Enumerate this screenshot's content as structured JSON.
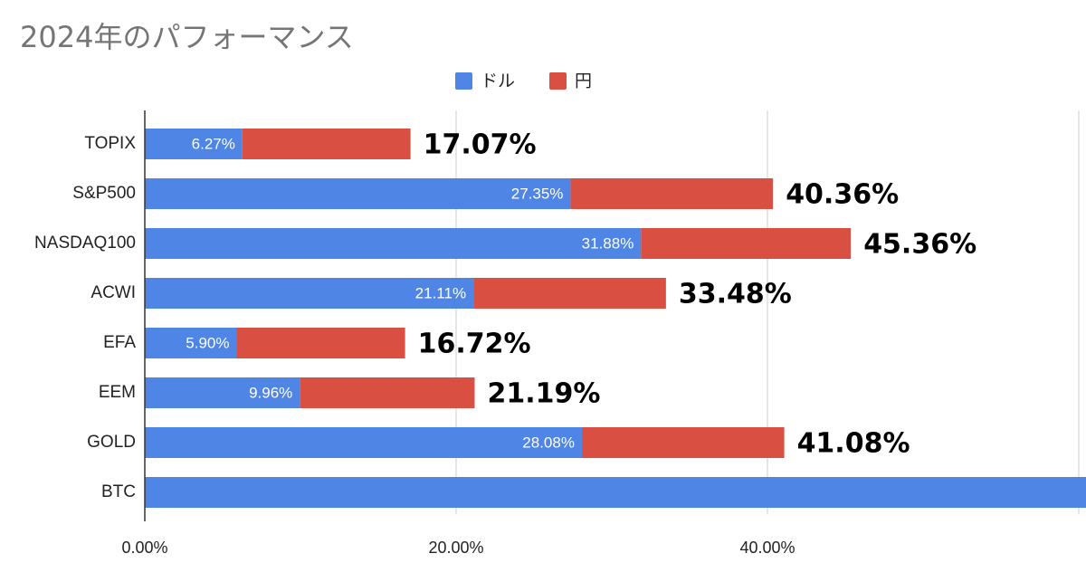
{
  "chart_data": {
    "type": "bar",
    "title": "2024年のパフォーマンス",
    "orientation": "horizontal",
    "stacked": true,
    "categories": [
      "TOPIX",
      "S&P500",
      "NASDAQ100",
      "ACWI",
      "EFA",
      "EEM",
      "GOLD",
      "BTC"
    ],
    "series": [
      {
        "name": "ドル",
        "color": "#4f86e6",
        "values": [
          6.27,
          27.35,
          31.88,
          21.11,
          5.9,
          9.96,
          28.08,
          60.5
        ],
        "labels": [
          "6.27%",
          "27.35%",
          "31.88%",
          "21.11%",
          "5.90%",
          "9.96%",
          "28.08%",
          ""
        ]
      },
      {
        "name": "円",
        "color": "#d94f41",
        "values": [
          10.8,
          13.01,
          13.48,
          12.37,
          10.82,
          11.23,
          13.0,
          0
        ],
        "labels": []
      }
    ],
    "totals": [
      "17.07%",
      "40.36%",
      "45.36%",
      "33.48%",
      "16.72%",
      "21.19%",
      "41.08%",
      ""
    ],
    "xlim": [
      0,
      60
    ],
    "xticks": [
      0,
      20,
      40
    ],
    "xtick_labels": [
      "0.00%",
      "20.00%",
      "40.00%"
    ],
    "grid": true,
    "legend_position": "top-center"
  }
}
